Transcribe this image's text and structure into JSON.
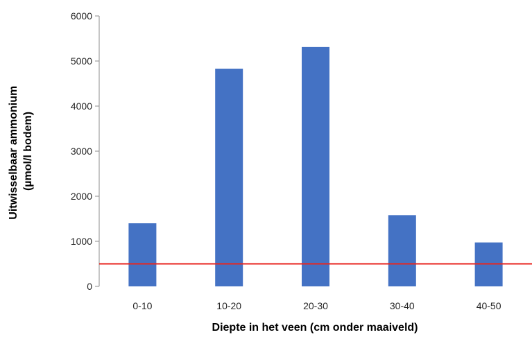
{
  "chart_data": {
    "type": "bar",
    "title": "",
    "xlabel": "Diepte in het veen (cm onder maaiveld)",
    "ylabel_lines": [
      "Uitwisselbaar ammonium",
      "(µmol/l bodem)"
    ],
    "categories": [
      "0-10",
      "10-20",
      "20-30",
      "30-40",
      "40-50"
    ],
    "values": [
      1400,
      4830,
      5310,
      1580,
      975
    ],
    "ylim": [
      0,
      6000
    ],
    "yticks": [
      0,
      1000,
      2000,
      3000,
      4000,
      5000,
      6000
    ],
    "reference_line": {
      "y": 500,
      "color": "#e8251f"
    },
    "bar_color": "#4472c4",
    "grid": false,
    "legend": "none"
  }
}
